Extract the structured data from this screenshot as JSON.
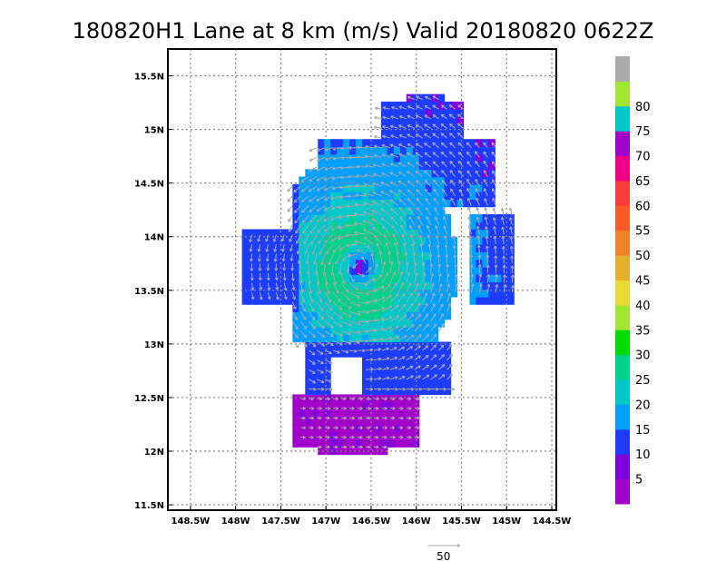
{
  "chart_data": {
    "type": "heatmap",
    "title": "180820H1 Lane at 8 km (m/s) Valid 20180820  0622Z",
    "x_ticks": [
      {
        "value": -148.5,
        "label": "148.5W"
      },
      {
        "value": -148.0,
        "label": "148W"
      },
      {
        "value": -147.5,
        "label": "147.5W"
      },
      {
        "value": -147.0,
        "label": "147W"
      },
      {
        "value": -146.5,
        "label": "146.5W"
      },
      {
        "value": -146.0,
        "label": "146W"
      },
      {
        "value": -145.5,
        "label": "145.5W"
      },
      {
        "value": -145.0,
        "label": "145W"
      },
      {
        "value": -144.5,
        "label": "144.5W"
      }
    ],
    "y_ticks": [
      {
        "value": 11.5,
        "label": "11.5N"
      },
      {
        "value": 12.0,
        "label": "12N"
      },
      {
        "value": 12.5,
        "label": "12.5N"
      },
      {
        "value": 13.0,
        "label": "13N"
      },
      {
        "value": 13.5,
        "label": "13.5N"
      },
      {
        "value": 14.0,
        "label": "14N"
      },
      {
        "value": 14.5,
        "label": "14.5N"
      },
      {
        "value": 15.0,
        "label": "15N"
      },
      {
        "value": 15.5,
        "label": "15.5N"
      }
    ],
    "xlim": [
      -148.75,
      -144.45
    ],
    "ylim": [
      11.45,
      15.75
    ],
    "grid": true,
    "colorbar": {
      "levels": [
        0,
        5,
        10,
        15,
        20,
        25,
        30,
        35,
        40,
        45,
        50,
        55,
        60,
        65,
        70,
        75,
        80,
        85
      ],
      "colors": [
        "#a000c8",
        "#8200dc",
        "#1e3cff",
        "#00a0ff",
        "#00c8c8",
        "#00d28c",
        "#00dc00",
        "#a0e632",
        "#e6dc32",
        "#e6af2d",
        "#f08228",
        "#fa5a28",
        "#fa3c3c",
        "#f00082",
        "#a000c8",
        "#00c8c8",
        "#a0e632",
        "#aaaaaa"
      ],
      "labels": [
        "5",
        "10",
        "15",
        "20",
        "25",
        "30",
        "35",
        "40",
        "45",
        "50",
        "55",
        "60",
        "65",
        "70",
        "75",
        "80"
      ]
    },
    "storm_center": {
      "lon": -146.62,
      "lat": 13.72
    },
    "wind_field": {
      "max_speed": 32,
      "rmw_deg": 0.3,
      "outer_speed": 22,
      "decay_deg": 1.4
    },
    "reference_vector": {
      "label": "50",
      "speed": 50
    }
  }
}
